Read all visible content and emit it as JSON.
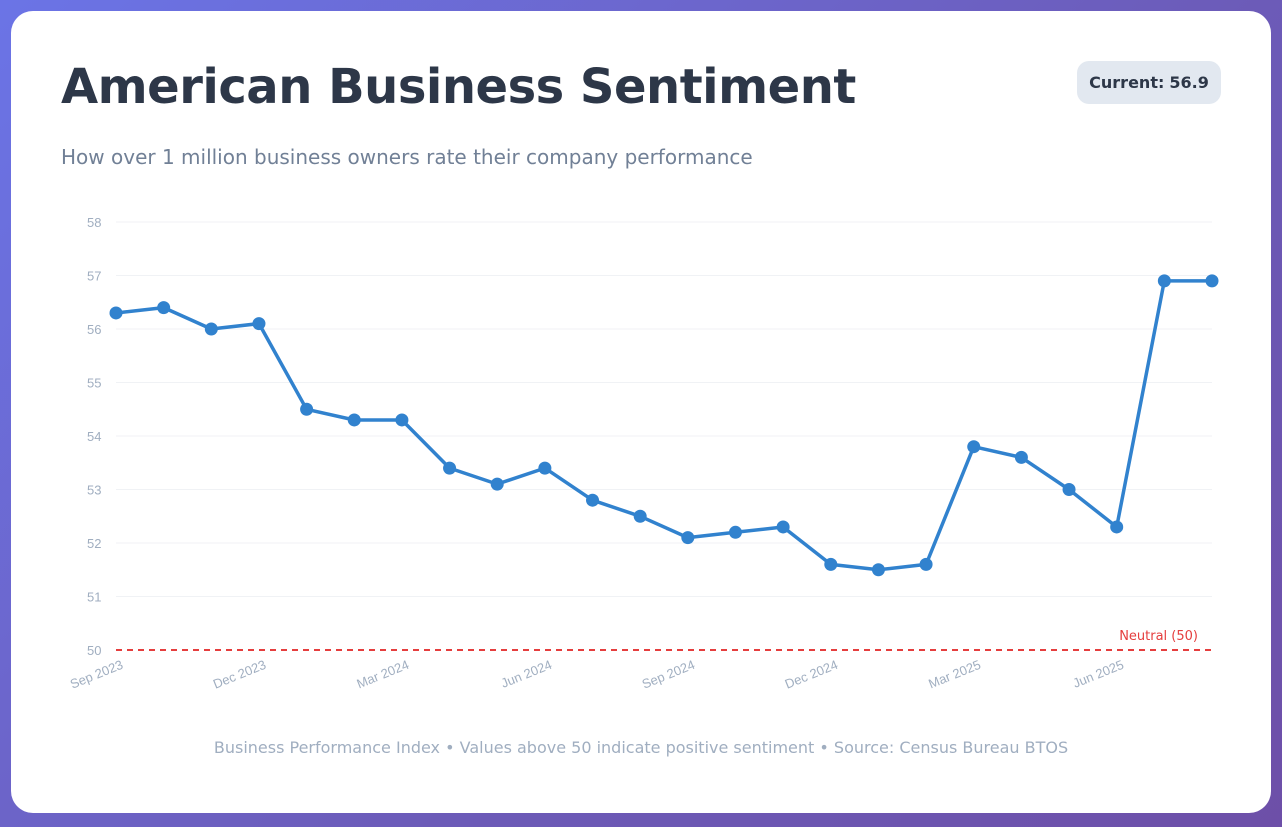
{
  "header": {
    "title": "American Business Sentiment",
    "subtitle": "How over 1 million business owners rate their company performance",
    "badge_label": "Current:",
    "badge_value": "56.9"
  },
  "footnote": "Business Performance Index • Values above 50 indicate positive sentiment • Source: Census Bureau BTOS",
  "colors": {
    "line": "#3182ce",
    "neutral": "#e53e3e",
    "grid": "#f0f2f5",
    "text_dark": "#2d3748",
    "text_muted": "#a0aec0"
  },
  "chart_data": {
    "type": "line",
    "title": "American Business Sentiment",
    "xlabel": "",
    "ylabel": "",
    "ylim": [
      50,
      58
    ],
    "yticks": [
      50,
      51,
      52,
      53,
      54,
      55,
      56,
      57,
      58
    ],
    "grid": true,
    "x": [
      "Sep 2023",
      "Oct 2023",
      "Nov 2023",
      "Dec 2023",
      "Jan 2024",
      "Feb 2024",
      "Mar 2024",
      "Apr 2024",
      "May 2024",
      "Jun 2024",
      "Jul 2024",
      "Aug 2024",
      "Sep 2024",
      "Oct 2024",
      "Nov 2024",
      "Dec 2024",
      "Jan 2025",
      "Feb 2025",
      "Mar 2025",
      "Apr 2025",
      "May 2025",
      "Jun 2025",
      "Jul 2025",
      "Aug 2025"
    ],
    "xtick_labels": [
      {
        "index": 0,
        "label": "Sep 2023"
      },
      {
        "index": 3,
        "label": "Dec 2023"
      },
      {
        "index": 6,
        "label": "Mar 2024"
      },
      {
        "index": 9,
        "label": "Jun 2024"
      },
      {
        "index": 12,
        "label": "Sep 2024"
      },
      {
        "index": 15,
        "label": "Dec 2024"
      },
      {
        "index": 18,
        "label": "Mar 2025"
      },
      {
        "index": 21,
        "label": "Jun 2025"
      }
    ],
    "series": [
      {
        "name": "Business Performance Index",
        "values": [
          56.3,
          56.4,
          56.0,
          56.1,
          54.5,
          54.3,
          54.3,
          53.4,
          53.1,
          53.4,
          52.8,
          52.5,
          52.1,
          52.2,
          52.3,
          51.6,
          51.5,
          51.6,
          53.8,
          53.6,
          53.0,
          52.3,
          56.9,
          56.9
        ]
      }
    ],
    "reference_line": {
      "value": 50,
      "label": "Neutral (50)",
      "style": "dashed"
    }
  }
}
